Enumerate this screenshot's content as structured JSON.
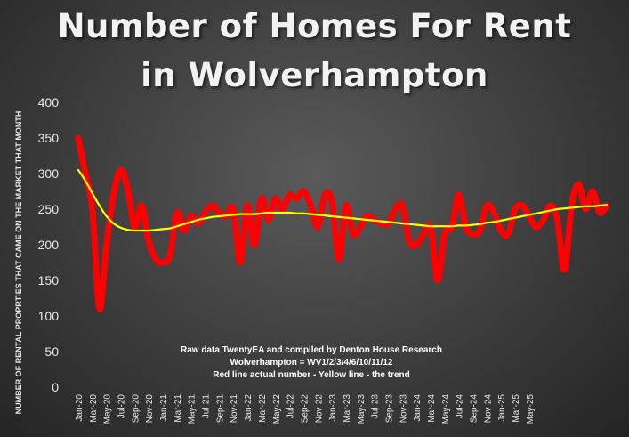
{
  "title_line1": "Number of Homes For Rent",
  "title_line2": "in Wolverhampton",
  "chart_data": {
    "type": "line",
    "ylabel": "NUMBER OF RENTAL PROPRTIES THAT CAME ON THE MARKET THAT MONTH",
    "ylim": [
      0,
      400
    ],
    "y_ticks": [
      0,
      50,
      100,
      150,
      200,
      250,
      300,
      350,
      400
    ],
    "x_tick_labels": [
      "Jan-20",
      "Mar-20",
      "May-20",
      "Jul-20",
      "Sep-20",
      "Nov-20",
      "Jan-21",
      "Mar-21",
      "May-21",
      "Jul-21",
      "Sep-21",
      "Nov-21",
      "Jan-22",
      "Mar-22",
      "May-22",
      "Jul-22",
      "Sep-22",
      "Nov-22",
      "Jan-23",
      "Mar-23",
      "May-23",
      "Jul-23",
      "Sep-23",
      "Nov-23",
      "Jan-24",
      "Mar-24",
      "May-24",
      "Jul-24",
      "Sep-24",
      "Nov-24",
      "Jan-25",
      "Mar-25",
      "May-25"
    ],
    "series": [
      {
        "color": "#ff0000",
        "values": [
          350,
          300,
          250,
          110,
          200,
          270,
          305,
          280,
          225,
          255,
          205,
          180,
          175,
          185,
          245,
          220,
          240,
          230,
          245,
          255,
          245,
          240,
          250,
          175,
          255,
          200,
          265,
          235,
          265,
          250,
          270,
          265,
          275,
          255,
          225,
          270,
          260,
          180,
          255,
          215,
          225,
          240,
          235,
          230,
          230,
          250,
          255,
          205,
          200,
          215,
          225,
          150,
          215,
          225,
          270,
          225,
          215,
          220,
          255,
          245,
          220,
          215,
          250,
          255,
          240,
          225,
          235,
          255,
          235,
          165,
          255,
          285,
          250,
          275,
          245,
          255
        ],
        "trend_values": [
          305,
          290,
          272,
          255,
          240,
          230,
          224,
          221,
          220,
          220,
          220,
          221,
          222,
          223,
          226,
          229,
          232,
          235,
          237,
          239,
          240,
          241,
          242,
          243,
          243,
          243,
          244,
          245,
          245,
          245,
          245,
          244,
          244,
          243,
          242,
          241,
          240,
          239,
          238,
          237,
          236,
          235,
          234,
          233,
          232,
          231,
          230,
          229,
          228,
          227,
          226,
          226,
          226,
          226,
          227,
          227,
          228,
          229,
          231,
          232,
          234,
          236,
          238,
          240,
          242,
          244,
          246,
          248,
          250,
          251,
          252,
          253,
          254,
          254,
          255,
          256
        ]
      }
    ],
    "trend_color": "#ffff00",
    "notes": [
      "Raw data TwentyEA and compiled by Denton House Research",
      "Wolverhampton = WV1/2/3/4/6/10/11/12",
      "Red line actual number - Yellow line  - the trend"
    ]
  }
}
